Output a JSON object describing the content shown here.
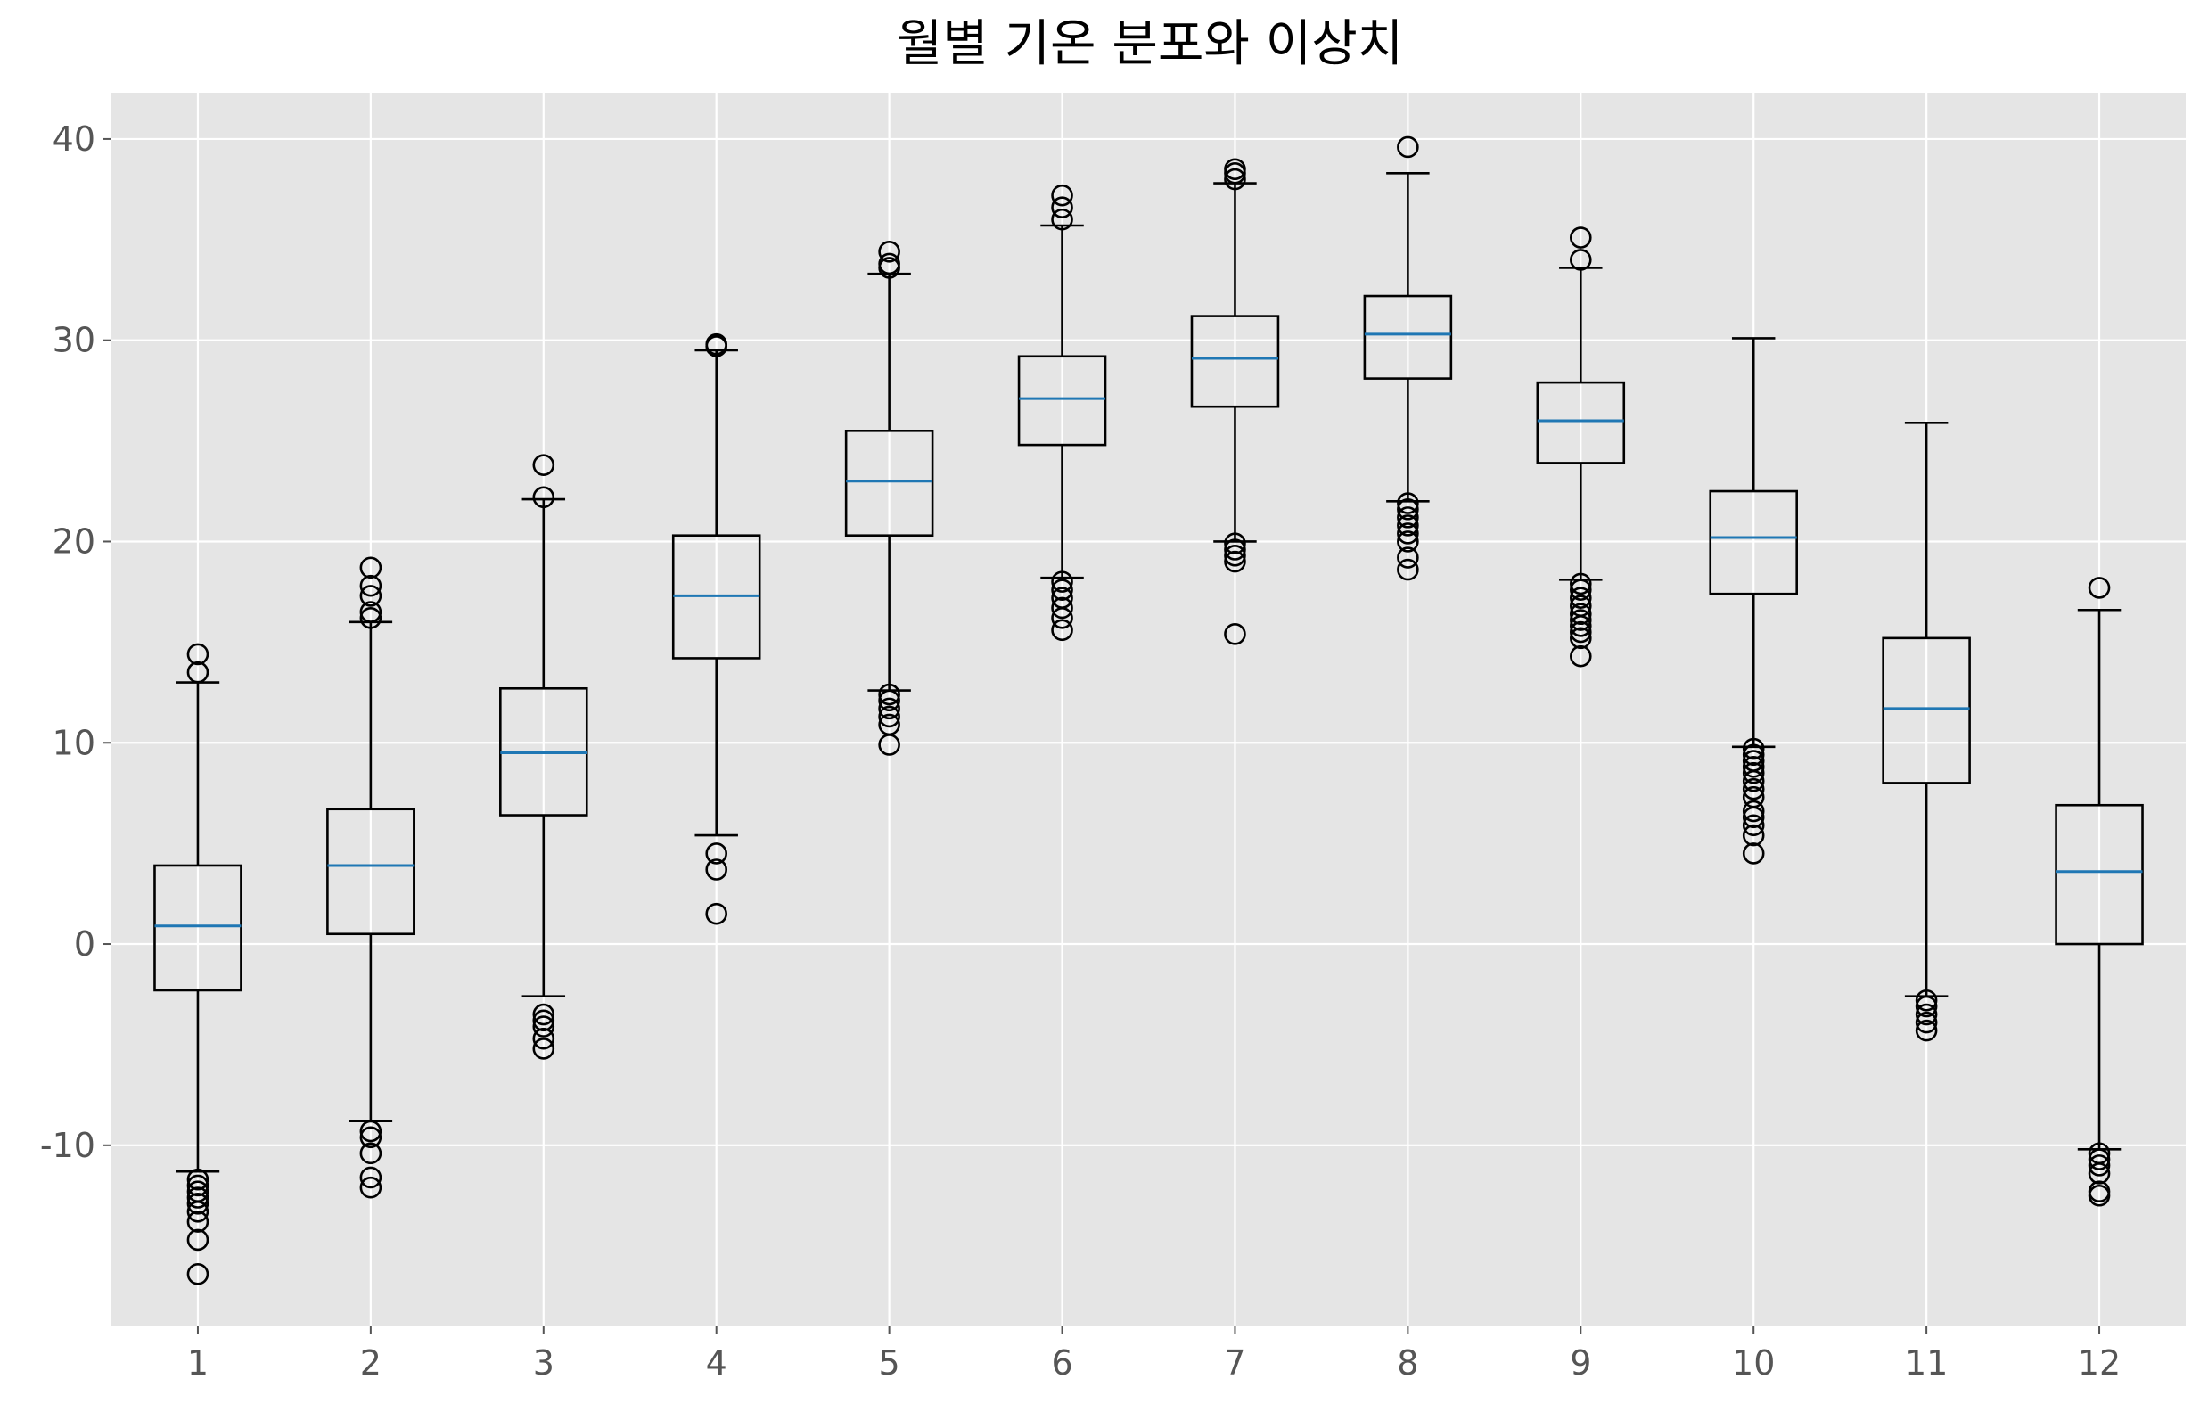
{
  "chart_data": {
    "type": "box",
    "title": "월별 기온 분포와 이상치",
    "xlabel": "",
    "ylabel": "",
    "ylim": [
      -19,
      42.3
    ],
    "yticks": [
      -10,
      0,
      10,
      20,
      30,
      40
    ],
    "categories": [
      "1",
      "2",
      "3",
      "4",
      "5",
      "6",
      "7",
      "8",
      "9",
      "10",
      "11",
      "12"
    ],
    "grid": true,
    "colors": {
      "plot_background": "#e5e5e5",
      "grid": "#ffffff",
      "box": "#000000",
      "median": "#1f77b4"
    },
    "boxes": [
      {
        "month": "1",
        "whisker_low": -11.3,
        "q1": -2.3,
        "median": 0.9,
        "q3": 3.9,
        "whisker_high": 13.0,
        "outliers": [
          -16.4,
          -14.7,
          -13.8,
          -13.3,
          -12.9,
          -12.6,
          -12.3,
          -12.0,
          -11.7,
          13.5,
          14.4
        ]
      },
      {
        "month": "2",
        "whisker_low": -8.8,
        "q1": 0.5,
        "median": 3.9,
        "q3": 6.7,
        "whisker_high": 16.0,
        "outliers": [
          -12.1,
          -11.6,
          -10.4,
          -9.6,
          -9.3,
          16.2,
          16.5,
          17.3,
          17.8,
          18.7
        ]
      },
      {
        "month": "3",
        "whisker_low": -2.6,
        "q1": 6.4,
        "median": 9.5,
        "q3": 12.7,
        "whisker_high": 22.1,
        "outliers": [
          -5.2,
          -4.7,
          -4.1,
          -3.8,
          -3.5,
          22.2,
          23.8
        ]
      },
      {
        "month": "4",
        "whisker_low": 5.4,
        "q1": 14.2,
        "median": 17.3,
        "q3": 20.3,
        "whisker_high": 29.5,
        "outliers": [
          1.5,
          3.7,
          4.5,
          29.7,
          29.8
        ]
      },
      {
        "month": "5",
        "whisker_low": 12.6,
        "q1": 20.3,
        "median": 23.0,
        "q3": 25.5,
        "whisker_high": 33.3,
        "outliers": [
          9.9,
          10.9,
          11.3,
          11.7,
          12.1,
          12.4,
          33.6,
          33.8,
          34.4
        ]
      },
      {
        "month": "6",
        "whisker_low": 18.2,
        "q1": 24.8,
        "median": 27.1,
        "q3": 29.2,
        "whisker_high": 35.7,
        "outliers": [
          15.6,
          16.2,
          16.7,
          17.2,
          17.6,
          18.0,
          36.0,
          36.6,
          37.2
        ]
      },
      {
        "month": "7",
        "whisker_low": 20.0,
        "q1": 26.7,
        "median": 29.1,
        "q3": 31.2,
        "whisker_high": 37.8,
        "outliers": [
          15.4,
          19.0,
          19.3,
          19.6,
          19.9,
          38.0,
          38.3,
          38.5
        ]
      },
      {
        "month": "8",
        "whisker_low": 22.0,
        "q1": 28.1,
        "median": 30.3,
        "q3": 32.2,
        "whisker_high": 38.3,
        "outliers": [
          18.6,
          19.2,
          20.0,
          20.4,
          20.8,
          21.2,
          21.6,
          21.9,
          39.6
        ]
      },
      {
        "month": "9",
        "whisker_low": 18.1,
        "q1": 23.9,
        "median": 26.0,
        "q3": 27.9,
        "whisker_high": 33.6,
        "outliers": [
          14.3,
          15.2,
          15.5,
          15.8,
          16.1,
          16.4,
          16.8,
          17.2,
          17.6,
          17.9,
          34.0,
          35.1
        ]
      },
      {
        "month": "10",
        "whisker_low": 9.8,
        "q1": 17.4,
        "median": 20.2,
        "q3": 22.5,
        "whisker_high": 30.1,
        "outliers": [
          4.5,
          5.4,
          5.9,
          6.3,
          6.6,
          7.3,
          7.7,
          8.1,
          8.5,
          8.8,
          9.1,
          9.4,
          9.7
        ]
      },
      {
        "month": "11",
        "whisker_low": -2.6,
        "q1": 8.0,
        "median": 11.7,
        "q3": 15.2,
        "whisker_high": 25.9,
        "outliers": [
          -4.3,
          -3.9,
          -3.5,
          -3.1,
          -2.8
        ]
      },
      {
        "month": "12",
        "whisker_low": -10.2,
        "q1": 0.0,
        "median": 3.6,
        "q3": 6.9,
        "whisker_high": 16.6,
        "outliers": [
          -12.5,
          -12.3,
          -11.4,
          -11.0,
          -10.7,
          -10.4,
          17.7
        ]
      }
    ]
  }
}
